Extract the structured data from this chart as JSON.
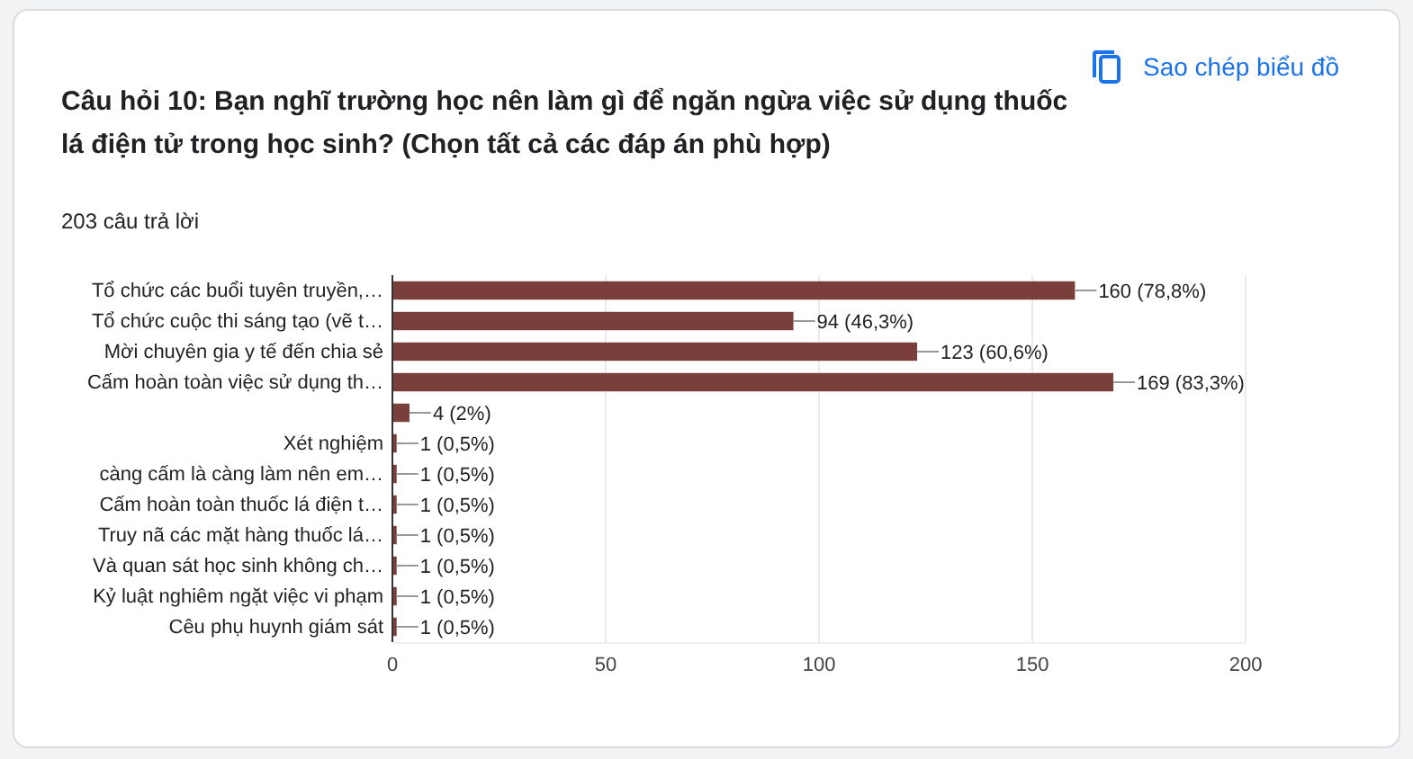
{
  "chart_data": {
    "type": "bar",
    "orientation": "horizontal",
    "title": "Câu hỏi 10: Bạn nghĩ trường học nên làm gì để ngăn ngừa việc sử dụng thuốc lá điện tử trong học sinh? (Chọn tất cả các đáp án phù hợp)",
    "subtitle": "203 câu trả lời",
    "annotations": [
      "Sao chép biểu đồ"
    ],
    "categories": [
      "Tổ chức các buổi tuyên truyền,…",
      "Tổ chức cuộc thi sáng tạo (vẽ t…",
      "Mời chuyên gia y tế đến chia sẻ",
      "Cấm hoàn toàn việc sử dụng th…",
      null,
      "Xét nghiệm",
      "càng cấm là càng làm nên em…",
      "Cấm hoàn toàn thuốc lá điện t…",
      "Truy nã các mặt hàng thuốc lá…",
      "Và quan sát học sinh không ch…",
      "Kỷ luật nghiêm ngặt việc vi phạm",
      "Cêu phụ huynh giám sát"
    ],
    "values": [
      160,
      94,
      123,
      169,
      4,
      1,
      1,
      1,
      1,
      1,
      1,
      1
    ],
    "value_labels": [
      "160 (78,8%)",
      "94 (46,3%)",
      "123 (60,6%)",
      "169 (83,3%)",
      "4 (2%)",
      "1 (0,5%)",
      "1 (0,5%)",
      "1 (0,5%)",
      "1 (0,5%)",
      "1 (0,5%)",
      "1 (0,5%)",
      "1 (0,5%)"
    ],
    "color": "#7b3f3b",
    "xlim": [
      0,
      200
    ],
    "xticks": [
      0,
      50,
      100,
      150,
      200
    ],
    "grid": "x"
  }
}
